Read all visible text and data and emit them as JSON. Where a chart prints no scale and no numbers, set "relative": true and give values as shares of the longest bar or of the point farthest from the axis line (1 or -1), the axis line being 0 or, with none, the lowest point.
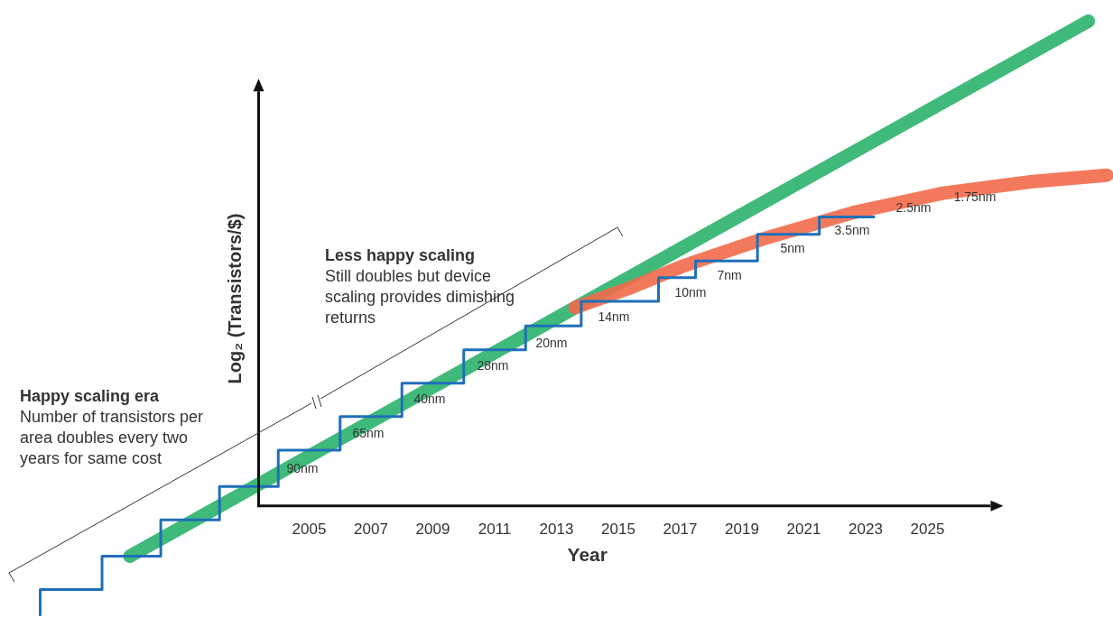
{
  "chart_data": {
    "type": "line",
    "relative": true,
    "xlabel": "Year",
    "ylabel": "Log₂ (Transistors/$)",
    "xlim": [
      1995,
      2031
    ],
    "xticks": [
      2005,
      2007,
      2009,
      2011,
      2013,
      2015,
      2017,
      2019,
      2021,
      2023,
      2025
    ],
    "legend": false,
    "grid": false,
    "series": [
      {
        "color": "#2bb36b",
        "x": [
          1999.2,
          2030.2
        ],
        "values": [
          -0.104,
          1
        ]
      },
      {
        "color": "#f26a4b",
        "x": [
          2013.6,
          2015.35,
          2017.1,
          2019.7,
          2022.6,
          2025.5,
          2028.4,
          2030.8
        ],
        "values": [
          0.409,
          0.449,
          0.495,
          0.551,
          0.605,
          0.645,
          0.669,
          0.682
        ]
      },
      {
        "type": "step",
        "color": "#1f6fb8",
        "x": [
          1996.3,
          1996.3,
          1998.3,
          2000.2,
          2002.1,
          2004,
          2006,
          2008,
          2010,
          2012,
          2013.8,
          2016.3,
          2017.5,
          2019.5,
          2021.5,
          2023.3
        ],
        "values": [
          -0.227,
          -0.173,
          -0.104,
          -0.029,
          0.04,
          0.115,
          0.184,
          0.253,
          0.322,
          0.371,
          0.422,
          0.471,
          0.505,
          0.56,
          0.596,
          0.596
        ]
      }
    ],
    "annotations": [
      "Happy scaling era",
      "Number of transistors per area doubles every two years for same cost",
      "Less happy scaling",
      "Still doubles but device scaling provides dimishing returns",
      "90nm",
      "65nm",
      "40nm",
      "28nm",
      "20nm",
      "14nm",
      "10nm",
      "7nm",
      "5nm",
      "3.5nm",
      "2.5nm",
      "1.75nm"
    ]
  }
}
